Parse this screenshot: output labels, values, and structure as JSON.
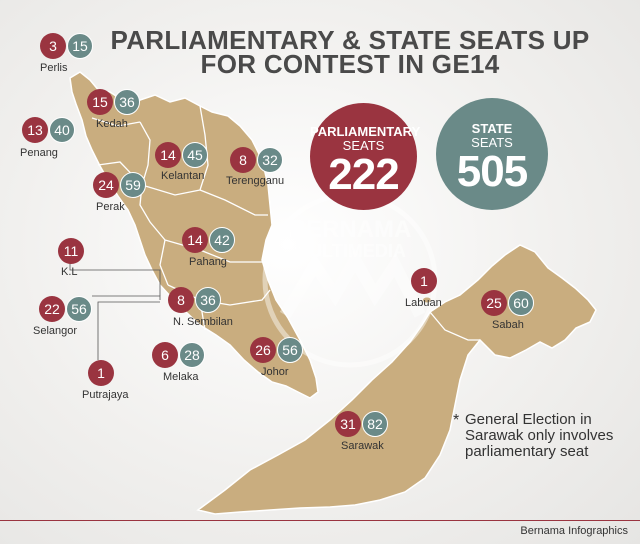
{
  "title": {
    "line1": "PARLIAMENTARY & STATE SEATS UP",
    "line2": "FOR CONTEST IN GE14"
  },
  "totals": {
    "parliamentary": {
      "line1": "PARLIAMENTARY",
      "line2": "SEATS",
      "value": "222",
      "color": "#9a3440"
    },
    "state": {
      "line1": "STATE",
      "line2": "SEATS",
      "value": "505",
      "color": "#6a8a88"
    }
  },
  "states": [
    {
      "name": "Perlis",
      "parliamentary": "3",
      "state": "15"
    },
    {
      "name": "Kedah",
      "parliamentary": "15",
      "state": "36"
    },
    {
      "name": "Penang",
      "parliamentary": "13",
      "state": "40"
    },
    {
      "name": "Kelantan",
      "parliamentary": "14",
      "state": "45"
    },
    {
      "name": "Terengganu",
      "parliamentary": "8",
      "state": "32"
    },
    {
      "name": "Perak",
      "parliamentary": "24",
      "state": "59"
    },
    {
      "name": "Pahang",
      "parliamentary": "14",
      "state": "42"
    },
    {
      "name": "K.L",
      "parliamentary": "11",
      "state": ""
    },
    {
      "name": "Selangor",
      "parliamentary": "22",
      "state": "56"
    },
    {
      "name": "N. Sembilan",
      "parliamentary": "8",
      "state": "36"
    },
    {
      "name": "Putrajaya",
      "parliamentary": "1",
      "state": ""
    },
    {
      "name": "Melaka",
      "parliamentary": "6",
      "state": "28"
    },
    {
      "name": "Johor",
      "parliamentary": "26",
      "state": "56"
    },
    {
      "name": "Labuan",
      "parliamentary": "1",
      "state": ""
    },
    {
      "name": "Sabah",
      "parliamentary": "25",
      "state": "60"
    },
    {
      "name": "Sarawak",
      "parliamentary": "31",
      "state": "82"
    }
  ],
  "note": {
    "asterisk": "*",
    "text": "General Election in Sarawak only involves parliamentary seat"
  },
  "watermark": {
    "line1": "BERNAMA",
    "line2": "MULTIMEDIA"
  },
  "credit": "Bernama Infographics",
  "colors": {
    "map": "#c9ad7f",
    "border": "#ffffff",
    "parliamentary": "#9a3440",
    "state": "#6a8a88"
  }
}
